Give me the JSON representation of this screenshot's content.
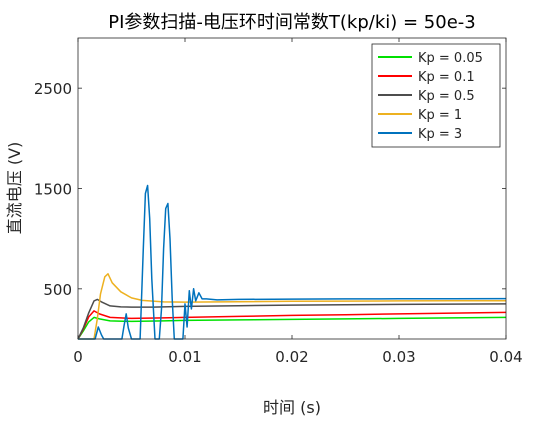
{
  "chart_data": {
    "type": "line",
    "title": "PI参数扫描-电压环时间常数T(kp/ki) = 50e-3",
    "xlabel": "时间 (s)",
    "ylabel": "直流电压 (V)",
    "xlim": [
      0,
      0.04
    ],
    "ylim": [
      0,
      3000
    ],
    "xticks": [
      0,
      0.01,
      0.02,
      0.03,
      0.04
    ],
    "xtick_labels": [
      "0",
      "0.01",
      "0.02",
      "0.03",
      "0.04"
    ],
    "yticks": [
      500,
      1500,
      2500
    ],
    "ytick_labels": [
      "500",
      "1500",
      "2500"
    ],
    "grid": false,
    "legend_position": "top-right",
    "series": [
      {
        "name": "Kp = 0.05",
        "color": "#00e000",
        "x": [
          0,
          0.0005,
          0.001,
          0.0015,
          0.002,
          0.003,
          0.005,
          0.008,
          0.01,
          0.015,
          0.02,
          0.025,
          0.03,
          0.035,
          0.04
        ],
        "y": [
          0,
          80,
          170,
          215,
          200,
          180,
          175,
          180,
          185,
          190,
          195,
          200,
          205,
          210,
          215
        ]
      },
      {
        "name": "Kp = 0.1",
        "color": "#ff0000",
        "x": [
          0,
          0.0005,
          0.001,
          0.0015,
          0.002,
          0.003,
          0.005,
          0.008,
          0.01,
          0.015,
          0.02,
          0.025,
          0.03,
          0.035,
          0.04
        ],
        "y": [
          0,
          100,
          220,
          280,
          250,
          215,
          205,
          210,
          215,
          225,
          235,
          242,
          250,
          258,
          265
        ]
      },
      {
        "name": "Kp = 0.5",
        "color": "#4d4d4d",
        "x": [
          0,
          0.0005,
          0.001,
          0.0015,
          0.0018,
          0.0022,
          0.003,
          0.004,
          0.005,
          0.007,
          0.01,
          0.015,
          0.02,
          0.025,
          0.03,
          0.035,
          0.04
        ],
        "y": [
          0,
          110,
          260,
          380,
          395,
          370,
          330,
          320,
          318,
          318,
          325,
          332,
          338,
          342,
          345,
          348,
          350
        ]
      },
      {
        "name": "Kp = 1",
        "color": "#edb120",
        "x": [
          0,
          0.0015,
          0.0018,
          0.0021,
          0.0025,
          0.0028,
          0.0032,
          0.004,
          0.005,
          0.006,
          0.008,
          0.01,
          0.015,
          0.02,
          0.025,
          0.03,
          0.035,
          0.04
        ],
        "y": [
          0,
          0,
          200,
          450,
          620,
          650,
          560,
          470,
          410,
          385,
          370,
          368,
          372,
          376,
          378,
          380,
          381,
          382
        ]
      },
      {
        "name": "Kp = 3",
        "color": "#0072bd",
        "x": [
          0,
          0.0016,
          0.0019,
          0.0022,
          0.0024,
          0.0028,
          0.0041,
          0.0043,
          0.0045,
          0.0047,
          0.005,
          0.0058,
          0.0061,
          0.0063,
          0.0065,
          0.0067,
          0.0069,
          0.0072,
          0.0076,
          0.0078,
          0.008,
          0.0082,
          0.0084,
          0.0086,
          0.0088,
          0.009,
          0.0092,
          0.0095,
          0.0098,
          0.01,
          0.0102,
          0.0104,
          0.0106,
          0.0108,
          0.011,
          0.0113,
          0.0116,
          0.012,
          0.013,
          0.015,
          0.02,
          0.025,
          0.03,
          0.035,
          0.04
        ],
        "y": [
          0,
          0,
          120,
          40,
          0,
          0,
          0,
          130,
          250,
          110,
          0,
          0,
          900,
          1450,
          1530,
          1200,
          600,
          0,
          0,
          300,
          900,
          1300,
          1350,
          1000,
          400,
          0,
          0,
          0,
          0,
          350,
          120,
          480,
          300,
          500,
          380,
          460,
          400,
          400,
          390,
          395,
          398,
          400,
          401,
          402,
          403
        ]
      }
    ]
  }
}
